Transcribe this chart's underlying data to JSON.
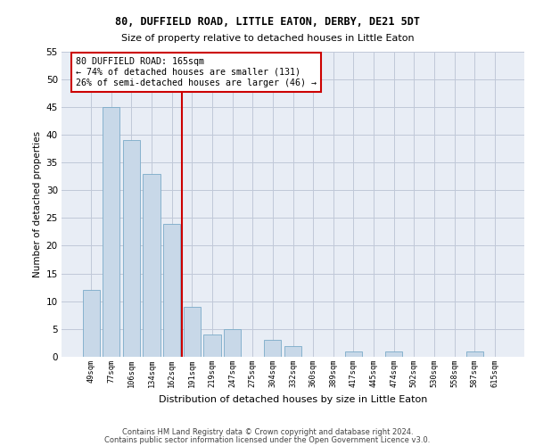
{
  "title1": "80, DUFFIELD ROAD, LITTLE EATON, DERBY, DE21 5DT",
  "title2": "Size of property relative to detached houses in Little Eaton",
  "xlabel": "Distribution of detached houses by size in Little Eaton",
  "ylabel": "Number of detached properties",
  "categories": [
    "49sqm",
    "77sqm",
    "106sqm",
    "134sqm",
    "162sqm",
    "191sqm",
    "219sqm",
    "247sqm",
    "275sqm",
    "304sqm",
    "332sqm",
    "360sqm",
    "389sqm",
    "417sqm",
    "445sqm",
    "474sqm",
    "502sqm",
    "530sqm",
    "558sqm",
    "587sqm",
    "615sqm"
  ],
  "values": [
    12,
    45,
    39,
    33,
    24,
    9,
    4,
    5,
    0,
    3,
    2,
    0,
    0,
    1,
    0,
    1,
    0,
    0,
    0,
    1,
    0
  ],
  "bar_color": "#c8d8e8",
  "bar_edge_color": "#7aaac8",
  "annotation_line1": "80 DUFFIELD ROAD: 165sqm",
  "annotation_line2": "← 74% of detached houses are smaller (131)",
  "annotation_line3": "26% of semi-detached houses are larger (46) →",
  "annotation_box_color": "#ffffff",
  "annotation_box_edge_color": "#cc0000",
  "property_line_color": "#cc0000",
  "ylim": [
    0,
    55
  ],
  "yticks": [
    0,
    5,
    10,
    15,
    20,
    25,
    30,
    35,
    40,
    45,
    50,
    55
  ],
  "grid_color": "#c0c8d8",
  "background_color": "#e8edf5",
  "footer1": "Contains HM Land Registry data © Crown copyright and database right 2024.",
  "footer2": "Contains public sector information licensed under the Open Government Licence v3.0."
}
